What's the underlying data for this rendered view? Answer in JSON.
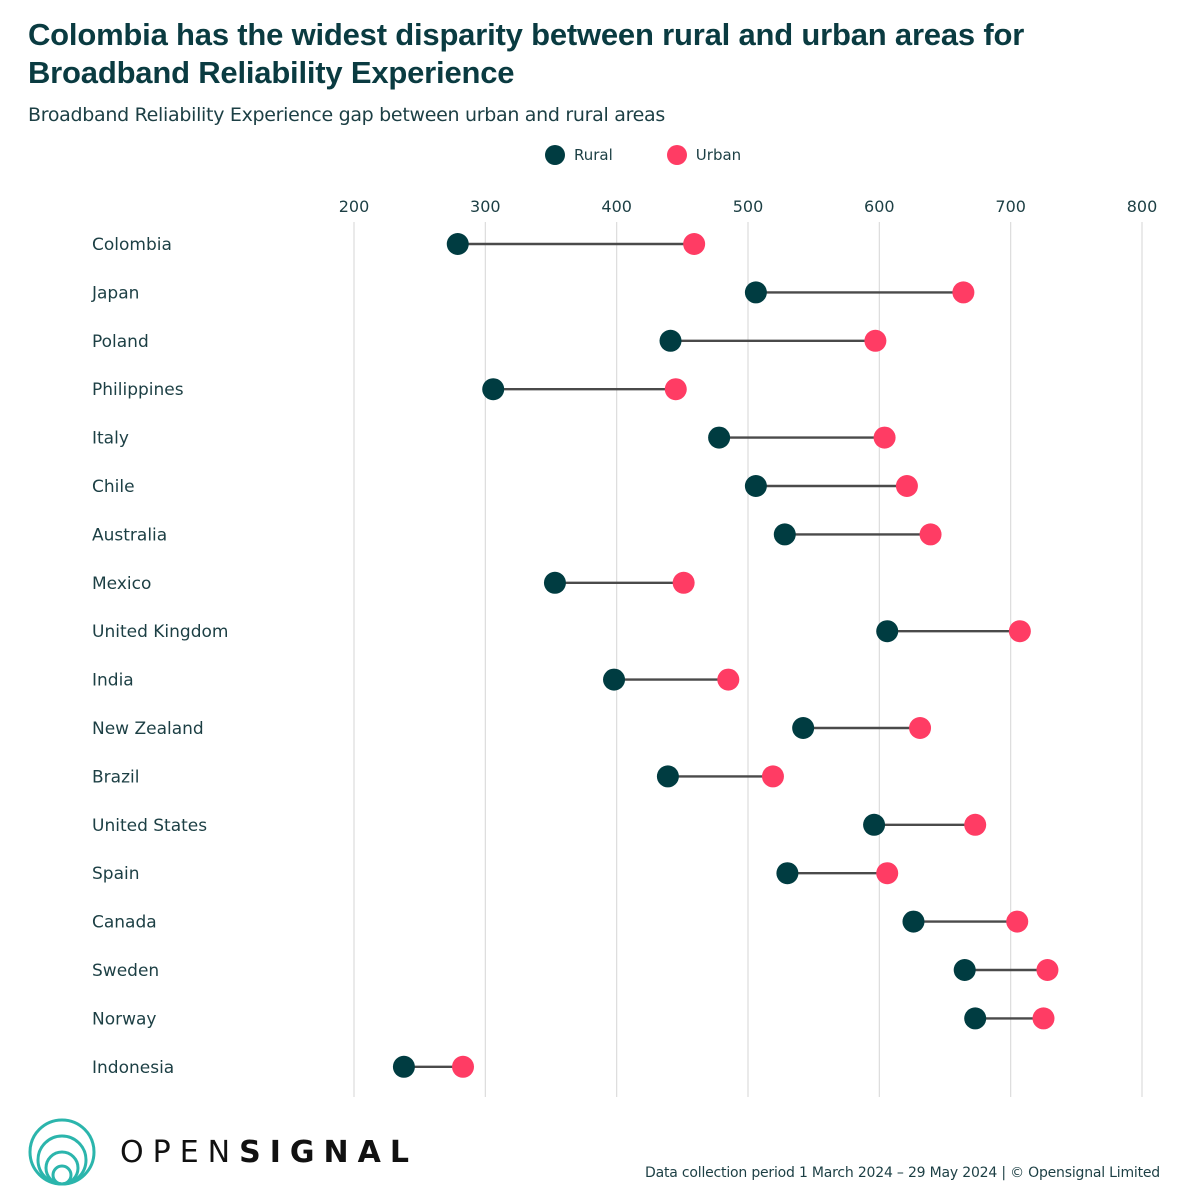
{
  "header": {
    "title": "Colombia has the widest disparity between rural and urban areas for Broadband Reliability Experience",
    "subtitle": "Broadband Reliability Experience gap between urban and rural areas"
  },
  "legend": {
    "items": [
      {
        "label": "Rural",
        "color": "#003c41"
      },
      {
        "label": "Urban",
        "color": "#ff3c64"
      }
    ]
  },
  "chart_data": {
    "type": "dumbbell",
    "title": "Colombia has the widest disparity between rural and urban areas for Broadband Reliability Experience",
    "subtitle": "Broadband Reliability Experience gap between urban and rural areas",
    "xlabel": "",
    "ylabel": "",
    "xlim": [
      200,
      800
    ],
    "x_ticks": [
      200,
      300,
      400,
      500,
      600,
      700,
      800
    ],
    "grid": "vertical",
    "legend_position": "top-center",
    "categories": [
      "Colombia",
      "Japan",
      "Poland",
      "Philippines",
      "Italy",
      "Chile",
      "Australia",
      "Mexico",
      "United Kingdom",
      "India",
      "New Zealand",
      "Brazil",
      "United States",
      "Spain",
      "Canada",
      "Sweden",
      "Norway",
      "Indonesia"
    ],
    "series": [
      {
        "name": "Rural",
        "color": "#003c41",
        "values": [
          279,
          506,
          441,
          306,
          478,
          506,
          528,
          353,
          606,
          398,
          542,
          439,
          596,
          530,
          626,
          665,
          673,
          238
        ]
      },
      {
        "name": "Urban",
        "color": "#ff3c64",
        "values": [
          459,
          664,
          597,
          445,
          604,
          621,
          639,
          451,
          707,
          485,
          631,
          519,
          673,
          606,
          705,
          728,
          725,
          283
        ]
      }
    ]
  },
  "footer": {
    "logo_light": "OPEN",
    "logo_bold": "SIGNAL",
    "logo_color": "#2bb5ac",
    "note": "Data collection period 1 March 2024 – 29 May 2024 | © Opensignal Limited"
  }
}
